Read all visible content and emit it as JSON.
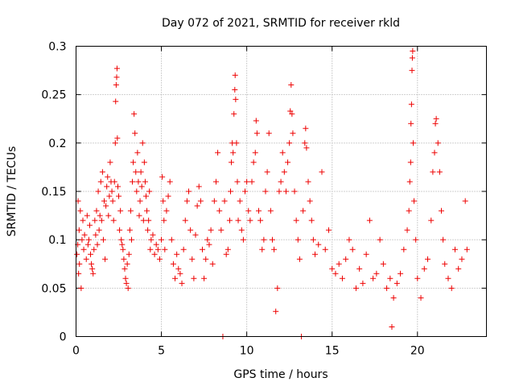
{
  "chart_data": {
    "type": "scatter",
    "title": "Day 072 of 2021, SRMTID for receiver rkld",
    "xlabel": "GPS time / hours",
    "ylabel": "SRMTID / TECUs",
    "xlim": [
      0,
      24.04
    ],
    "ylim": [
      0,
      0.3
    ],
    "x_ticks": [
      0,
      5,
      10,
      15,
      20
    ],
    "x_tick_labels": [
      "0",
      "5",
      "10",
      "15",
      "20"
    ],
    "y_ticks": [
      0,
      0.05,
      0.1,
      0.15,
      0.2,
      0.25,
      0.3
    ],
    "y_tick_labels": [
      "0",
      "0.05",
      "0.1",
      "0.15",
      "0.2",
      "0.25",
      "0.3"
    ],
    "grid": true,
    "marker": "plus",
    "color": "#ee0000",
    "series": [
      {
        "points": [
          [
            0.05,
            0.085
          ],
          [
            0.1,
            0.095
          ],
          [
            0.12,
            0.14
          ],
          [
            0.15,
            0.065
          ],
          [
            0.18,
            0.11
          ],
          [
            0.2,
            0.075
          ],
          [
            0.25,
            0.13
          ],
          [
            0.3,
            0.05
          ],
          [
            0.35,
            0.1
          ],
          [
            0.4,
            0.12
          ],
          [
            0.45,
            0.09
          ],
          [
            0.5,
            0.105
          ],
          [
            0.6,
            0.08
          ],
          [
            0.65,
            0.125
          ],
          [
            0.7,
            0.095
          ],
          [
            0.75,
            0.1
          ],
          [
            0.8,
            0.115
          ],
          [
            0.85,
            0.085
          ],
          [
            0.9,
            0.075
          ],
          [
            0.95,
            0.07
          ],
          [
            1.0,
            0.065
          ],
          [
            1.05,
            0.09
          ],
          [
            1.1,
            0.12
          ],
          [
            1.15,
            0.105
          ],
          [
            1.2,
            0.13
          ],
          [
            1.25,
            0.095
          ],
          [
            1.3,
            0.15
          ],
          [
            1.35,
            0.11
          ],
          [
            1.4,
            0.125
          ],
          [
            1.45,
            0.16
          ],
          [
            1.5,
            0.12
          ],
          [
            1.55,
            0.17
          ],
          [
            1.6,
            0.1
          ],
          [
            1.65,
            0.14
          ],
          [
            1.7,
            0.08
          ],
          [
            1.75,
            0.135
          ],
          [
            1.8,
            0.155
          ],
          [
            1.85,
            0.165
          ],
          [
            1.9,
            0.125
          ],
          [
            1.95,
            0.145
          ],
          [
            2.0,
            0.18
          ],
          [
            2.05,
            0.16
          ],
          [
            2.1,
            0.15
          ],
          [
            2.15,
            0.14
          ],
          [
            2.2,
            0.12
          ],
          [
            2.25,
            0.16
          ],
          [
            2.3,
            0.2
          ],
          [
            2.32,
            0.243
          ],
          [
            2.35,
            0.26
          ],
          [
            2.38,
            0.268
          ],
          [
            2.4,
            0.277
          ],
          [
            2.42,
            0.205
          ],
          [
            2.45,
            0.155
          ],
          [
            2.5,
            0.145
          ],
          [
            2.55,
            0.11
          ],
          [
            2.6,
            0.13
          ],
          [
            2.65,
            0.1
          ],
          [
            2.7,
            0.095
          ],
          [
            2.75,
            0.09
          ],
          [
            2.8,
            0.08
          ],
          [
            2.85,
            0.07
          ],
          [
            2.9,
            0.06
          ],
          [
            2.95,
            0.055
          ],
          [
            3.0,
            0.075
          ],
          [
            3.05,
            0.05
          ],
          [
            3.1,
            0.085
          ],
          [
            3.15,
            0.11
          ],
          [
            3.2,
            0.13
          ],
          [
            3.25,
            0.1
          ],
          [
            3.3,
            0.16
          ],
          [
            3.35,
            0.18
          ],
          [
            3.4,
            0.23
          ],
          [
            3.45,
            0.21
          ],
          [
            3.5,
            0.17
          ],
          [
            3.55,
            0.15
          ],
          [
            3.6,
            0.19
          ],
          [
            3.65,
            0.16
          ],
          [
            3.7,
            0.125
          ],
          [
            3.75,
            0.14
          ],
          [
            3.8,
            0.17
          ],
          [
            3.85,
            0.155
          ],
          [
            3.9,
            0.2
          ],
          [
            3.95,
            0.12
          ],
          [
            4.0,
            0.18
          ],
          [
            4.05,
            0.16
          ],
          [
            4.1,
            0.145
          ],
          [
            4.15,
            0.13
          ],
          [
            4.2,
            0.11
          ],
          [
            4.25,
            0.12
          ],
          [
            4.3,
            0.15
          ],
          [
            4.35,
            0.09
          ],
          [
            4.4,
            0.1
          ],
          [
            4.5,
            0.105
          ],
          [
            4.6,
            0.085
          ],
          [
            4.7,
            0.095
          ],
          [
            4.8,
            0.09
          ],
          [
            4.9,
            0.08
          ],
          [
            5.0,
            0.1
          ],
          [
            5.05,
            0.165
          ],
          [
            5.1,
            0.14
          ],
          [
            5.15,
            0.12
          ],
          [
            5.2,
            0.09
          ],
          [
            5.3,
            0.13
          ],
          [
            5.4,
            0.145
          ],
          [
            5.5,
            0.16
          ],
          [
            5.6,
            0.1
          ],
          [
            5.7,
            0.075
          ],
          [
            5.8,
            0.06
          ],
          [
            5.9,
            0.085
          ],
          [
            6.0,
            0.07
          ],
          [
            6.1,
            0.065
          ],
          [
            6.2,
            0.055
          ],
          [
            6.3,
            0.09
          ],
          [
            6.4,
            0.12
          ],
          [
            6.5,
            0.14
          ],
          [
            6.6,
            0.15
          ],
          [
            6.7,
            0.11
          ],
          [
            6.8,
            0.08
          ],
          [
            6.9,
            0.06
          ],
          [
            7.0,
            0.105
          ],
          [
            7.1,
            0.135
          ],
          [
            7.2,
            0.155
          ],
          [
            7.3,
            0.14
          ],
          [
            7.4,
            0.09
          ],
          [
            7.5,
            0.06
          ],
          [
            7.6,
            0.08
          ],
          [
            7.7,
            0.1
          ],
          [
            7.8,
            0.095
          ],
          [
            7.9,
            0.11
          ],
          [
            8.0,
            0.075
          ],
          [
            8.1,
            0.14
          ],
          [
            8.2,
            0.16
          ],
          [
            8.3,
            0.19
          ],
          [
            8.4,
            0.13
          ],
          [
            8.5,
            0.11
          ],
          [
            8.6,
            0.0
          ],
          [
            8.7,
            0.14
          ],
          [
            8.8,
            0.085
          ],
          [
            8.9,
            0.09
          ],
          [
            9.0,
            0.12
          ],
          [
            9.05,
            0.15
          ],
          [
            9.1,
            0.18
          ],
          [
            9.15,
            0.2
          ],
          [
            9.2,
            0.19
          ],
          [
            9.25,
            0.23
          ],
          [
            9.3,
            0.255
          ],
          [
            9.32,
            0.27
          ],
          [
            9.35,
            0.245
          ],
          [
            9.4,
            0.2
          ],
          [
            9.45,
            0.16
          ],
          [
            9.5,
            0.12
          ],
          [
            9.6,
            0.14
          ],
          [
            9.7,
            0.11
          ],
          [
            9.8,
            0.1
          ],
          [
            9.9,
            0.15
          ],
          [
            10.0,
            0.16
          ],
          [
            10.1,
            0.13
          ],
          [
            10.2,
            0.12
          ],
          [
            10.3,
            0.16
          ],
          [
            10.4,
            0.18
          ],
          [
            10.5,
            0.19
          ],
          [
            10.55,
            0.223
          ],
          [
            10.6,
            0.21
          ],
          [
            10.7,
            0.13
          ],
          [
            10.8,
            0.12
          ],
          [
            10.9,
            0.09
          ],
          [
            11.0,
            0.1
          ],
          [
            11.1,
            0.15
          ],
          [
            11.2,
            0.17
          ],
          [
            11.3,
            0.21
          ],
          [
            11.4,
            0.13
          ],
          [
            11.5,
            0.1
          ],
          [
            11.6,
            0.09
          ],
          [
            11.7,
            0.026
          ],
          [
            11.8,
            0.05
          ],
          [
            11.9,
            0.15
          ],
          [
            12.0,
            0.16
          ],
          [
            12.1,
            0.19
          ],
          [
            12.2,
            0.17
          ],
          [
            12.3,
            0.15
          ],
          [
            12.4,
            0.18
          ],
          [
            12.5,
            0.2
          ],
          [
            12.55,
            0.233
          ],
          [
            12.6,
            0.26
          ],
          [
            12.65,
            0.23
          ],
          [
            12.7,
            0.21
          ],
          [
            12.8,
            0.15
          ],
          [
            12.9,
            0.12
          ],
          [
            13.0,
            0.1
          ],
          [
            13.1,
            0.08
          ],
          [
            13.2,
            0.0
          ],
          [
            13.3,
            0.13
          ],
          [
            13.4,
            0.2
          ],
          [
            13.45,
            0.215
          ],
          [
            13.5,
            0.195
          ],
          [
            13.6,
            0.16
          ],
          [
            13.7,
            0.14
          ],
          [
            13.8,
            0.12
          ],
          [
            13.9,
            0.1
          ],
          [
            14.0,
            0.085
          ],
          [
            14.2,
            0.095
          ],
          [
            14.4,
            0.17
          ],
          [
            14.6,
            0.09
          ],
          [
            14.8,
            0.11
          ],
          [
            15.0,
            0.07
          ],
          [
            15.2,
            0.065
          ],
          [
            15.4,
            0.075
          ],
          [
            15.6,
            0.06
          ],
          [
            15.8,
            0.08
          ],
          [
            16.0,
            0.1
          ],
          [
            16.2,
            0.09
          ],
          [
            16.4,
            0.05
          ],
          [
            16.6,
            0.07
          ],
          [
            16.8,
            0.055
          ],
          [
            17.0,
            0.085
          ],
          [
            17.2,
            0.12
          ],
          [
            17.4,
            0.06
          ],
          [
            17.6,
            0.065
          ],
          [
            17.8,
            0.1
          ],
          [
            18.0,
            0.075
          ],
          [
            18.2,
            0.05
          ],
          [
            18.4,
            0.06
          ],
          [
            18.5,
            0.01
          ],
          [
            18.6,
            0.04
          ],
          [
            18.8,
            0.055
          ],
          [
            19.0,
            0.065
          ],
          [
            19.2,
            0.09
          ],
          [
            19.4,
            0.11
          ],
          [
            19.5,
            0.13
          ],
          [
            19.55,
            0.16
          ],
          [
            19.6,
            0.18
          ],
          [
            19.62,
            0.22
          ],
          [
            19.65,
            0.24
          ],
          [
            19.68,
            0.275
          ],
          [
            19.7,
            0.288
          ],
          [
            19.72,
            0.295
          ],
          [
            19.75,
            0.2
          ],
          [
            19.8,
            0.14
          ],
          [
            19.9,
            0.1
          ],
          [
            20.0,
            0.06
          ],
          [
            20.2,
            0.04
          ],
          [
            20.4,
            0.07
          ],
          [
            20.6,
            0.08
          ],
          [
            20.8,
            0.12
          ],
          [
            20.9,
            0.17
          ],
          [
            21.0,
            0.19
          ],
          [
            21.05,
            0.22
          ],
          [
            21.1,
            0.225
          ],
          [
            21.2,
            0.2
          ],
          [
            21.3,
            0.17
          ],
          [
            21.4,
            0.13
          ],
          [
            21.5,
            0.1
          ],
          [
            21.6,
            0.075
          ],
          [
            21.8,
            0.06
          ],
          [
            22.0,
            0.05
          ],
          [
            22.2,
            0.09
          ],
          [
            22.4,
            0.07
          ],
          [
            22.6,
            0.08
          ],
          [
            22.8,
            0.14
          ],
          [
            22.9,
            0.09
          ]
        ]
      }
    ]
  }
}
